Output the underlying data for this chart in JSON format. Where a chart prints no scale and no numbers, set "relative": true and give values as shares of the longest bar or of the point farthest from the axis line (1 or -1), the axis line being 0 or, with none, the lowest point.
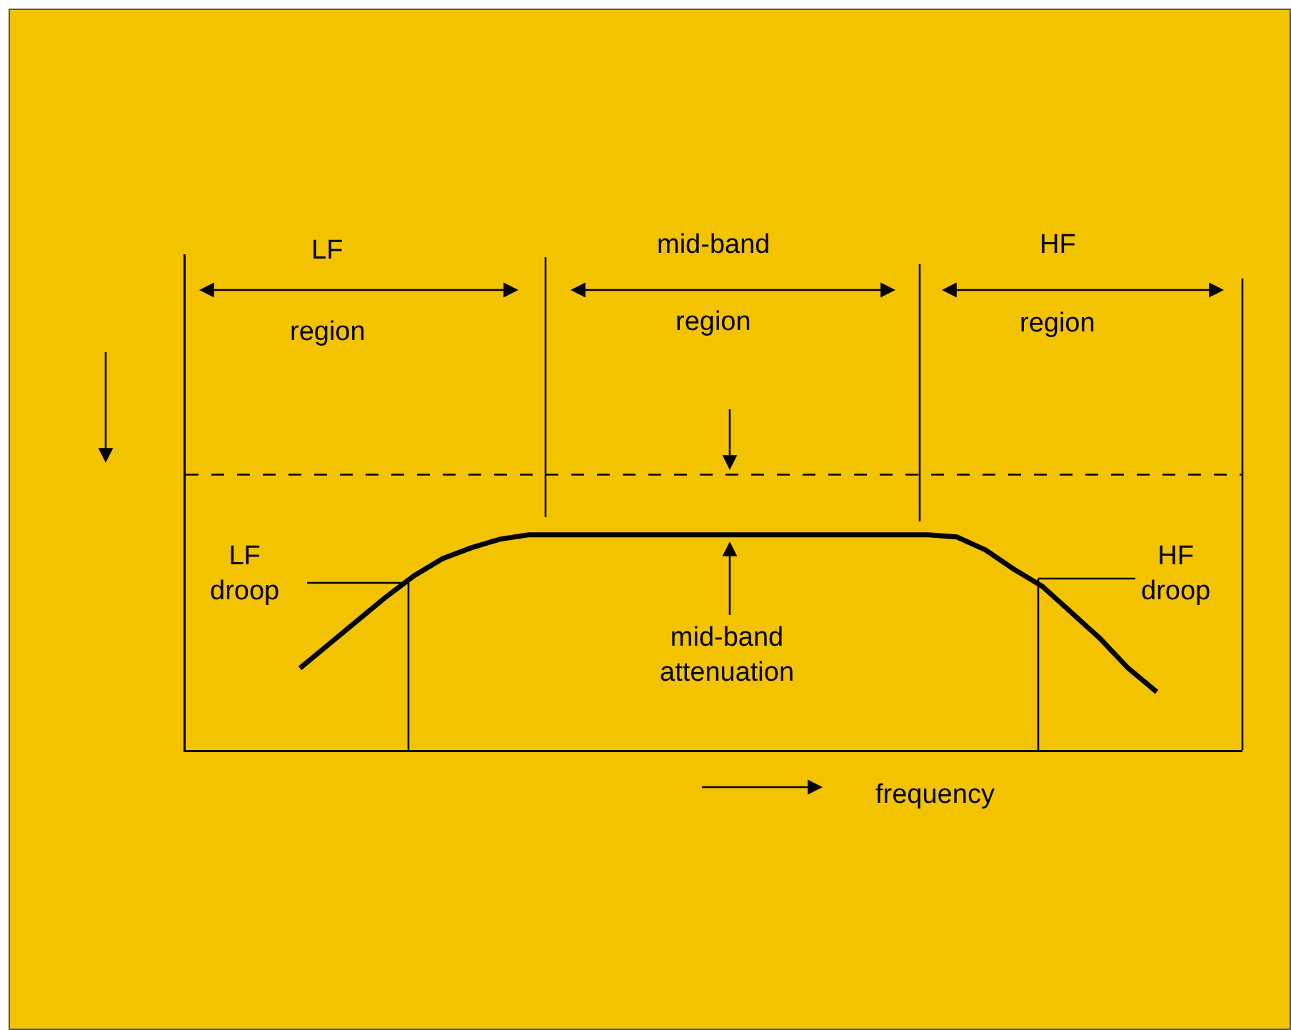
{
  "chart_data": {
    "type": "line",
    "relative": true,
    "xlabel": "frequency",
    "categories": [
      null,
      null,
      null,
      null,
      null,
      null,
      null,
      null,
      null,
      null,
      null,
      null,
      null,
      null,
      null,
      null,
      null,
      null,
      null,
      null,
      null,
      null,
      null,
      null,
      null,
      null,
      null,
      null,
      null,
      null,
      null,
      null,
      null,
      null,
      null,
      null,
      null,
      null
    ],
    "series": [
      {
        "color": "#000000",
        "values": [
          null,
          null,
          null,
          null,
          0.38,
          0.49,
          0.6,
          0.71,
          0.81,
          0.89,
          0.94,
          0.98,
          1,
          1,
          1,
          1,
          1,
          1,
          1,
          1,
          1,
          1,
          1,
          1,
          1,
          1,
          1,
          0.99,
          0.93,
          0.84,
          0.76,
          0.64,
          0.52,
          0.38,
          0.27,
          null,
          null,
          null
        ]
      }
    ],
    "ref_lines": [
      {
        "axis": "y",
        "value": 1.28,
        "line_style": "dashed",
        "color": "#000000"
      }
    ],
    "annotations": [
      "LF",
      "region",
      "mid-band",
      "region",
      "HF",
      "region",
      "LF\ndroop",
      "HF\ndroop",
      "mid-band\nattenuation"
    ],
    "marker": "none",
    "line_style": "solid"
  }
}
